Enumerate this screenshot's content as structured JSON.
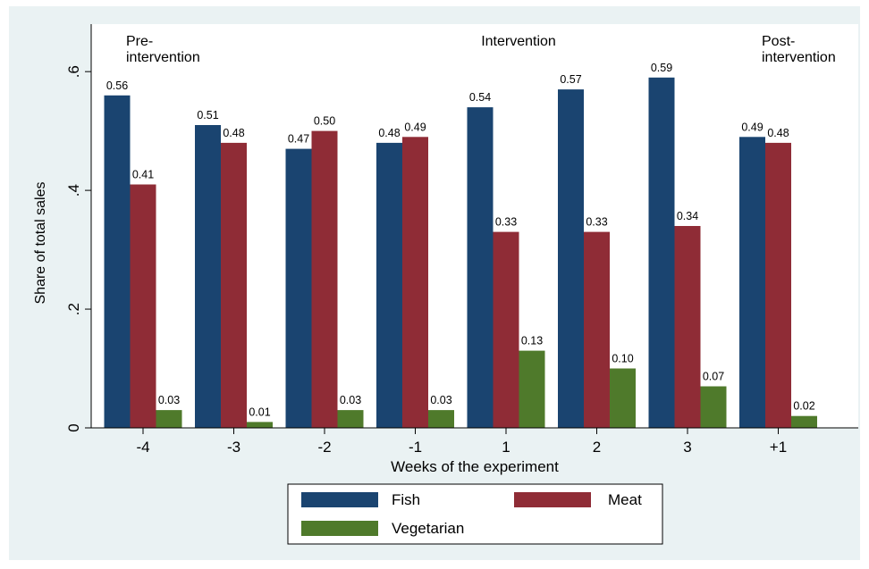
{
  "chart_data": {
    "type": "bar",
    "title": "",
    "xlabel": "Weeks of the experiment",
    "ylabel": "Share of total sales",
    "ylim": [
      0,
      0.68
    ],
    "yticks": [
      {
        "value": 0,
        "label": "0"
      },
      {
        "value": 0.2,
        "label": ".2"
      },
      {
        "value": 0.4,
        "label": ".4"
      },
      {
        "value": 0.6,
        "label": ".6"
      }
    ],
    "grid": false,
    "legend_position": "bottom",
    "categories": [
      "-4",
      "-3",
      "-2",
      "-1",
      "1",
      "2",
      "3",
      "+1"
    ],
    "series": [
      {
        "name": "Fish",
        "color": "#1a4470",
        "values": [
          0.56,
          0.51,
          0.47,
          0.48,
          0.54,
          0.57,
          0.59,
          0.49
        ],
        "labels": [
          "0.56",
          "0.51",
          "0.47",
          "0.48",
          "0.54",
          "0.57",
          "0.59",
          "0.49"
        ]
      },
      {
        "name": "Meat",
        "color": "#8f2c36",
        "values": [
          0.41,
          0.48,
          0.5,
          0.49,
          0.33,
          0.33,
          0.34,
          0.48
        ],
        "labels": [
          "0.41",
          "0.48",
          "0.50",
          "0.49",
          "0.33",
          "0.33",
          "0.34",
          "0.48"
        ]
      },
      {
        "name": "Vegetarian",
        "color": "#4f7a2b",
        "values": [
          0.03,
          0.01,
          0.03,
          0.03,
          0.13,
          0.1,
          0.07,
          0.02
        ],
        "labels": [
          "0.03",
          "0.01",
          "0.03",
          "0.03",
          "0.13",
          "0.10",
          "0.07",
          "0.02"
        ]
      }
    ],
    "annotations": [
      {
        "lines": [
          "Pre-",
          "intervention"
        ],
        "position": "top-left"
      },
      {
        "lines": [
          "Intervention"
        ],
        "position": "top-center"
      },
      {
        "lines": [
          "Post-",
          "intervention"
        ],
        "position": "top-right"
      }
    ]
  }
}
